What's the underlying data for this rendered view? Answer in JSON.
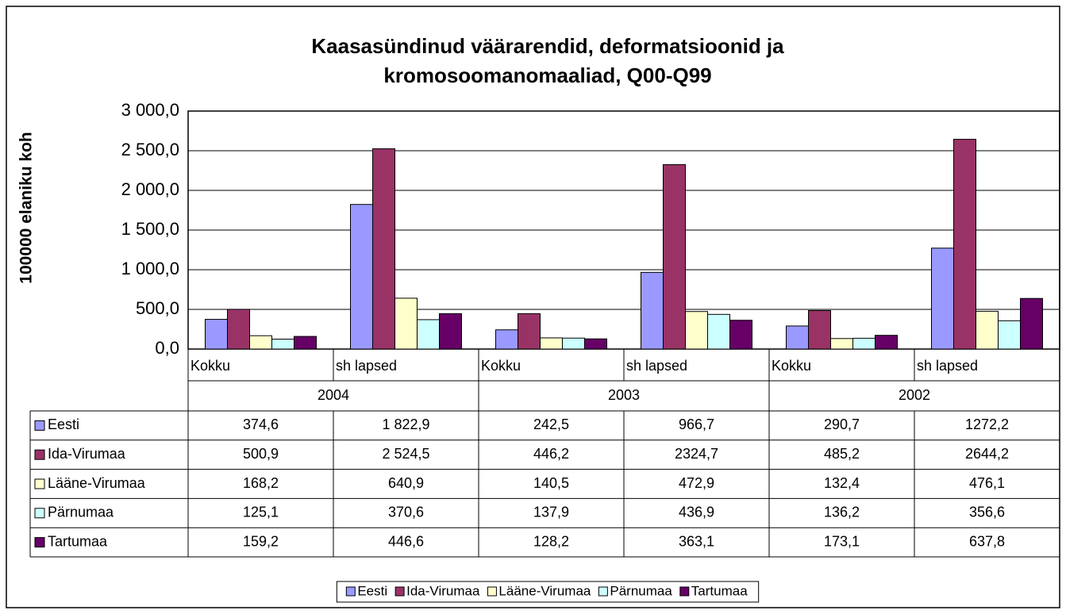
{
  "chart_data": {
    "type": "bar",
    "title": "Kaasasündinud väärarendid, deformatsioonid ja kromosoomanomaaliad, Q00-Q99",
    "title_lines": [
      "Kaasasündinud väärarendid, deformatsioonid ja",
      "kromosoomanomaaliad, Q00-Q99"
    ],
    "ylabel": "100000 elaniku koh",
    "categories": [
      "Kokku",
      "sh lapsed",
      "Kokku",
      "sh lapsed",
      "Kokku",
      "sh lapsed"
    ],
    "groups": [
      "2004",
      "2003",
      "2002"
    ],
    "series": [
      {
        "name": "Eesti",
        "color": "#9999ff",
        "values": [
          374.6,
          1822.9,
          242.5,
          966.7,
          290.7,
          1272.2
        ],
        "value_labels": [
          "374,6",
          "1 822,9",
          "242,5",
          "966,7",
          "290,7",
          "1272,2"
        ]
      },
      {
        "name": "Ida-Virumaa",
        "color": "#993366",
        "values": [
          500.9,
          2524.5,
          446.2,
          2324.7,
          485.2,
          2644.2
        ],
        "value_labels": [
          "500,9",
          "2 524,5",
          "446,2",
          "2324,7",
          "485,2",
          "2644,2"
        ]
      },
      {
        "name": "Lääne-Virumaa",
        "color": "#ffffcc",
        "values": [
          168.2,
          640.9,
          140.5,
          472.9,
          132.4,
          476.1
        ],
        "value_labels": [
          "168,2",
          "640,9",
          "140,5",
          "472,9",
          "132,4",
          "476,1"
        ]
      },
      {
        "name": "Pärnumaa",
        "color": "#ccffff",
        "values": [
          125.1,
          370.6,
          137.9,
          436.9,
          136.2,
          356.6
        ],
        "value_labels": [
          "125,1",
          "370,6",
          "137,9",
          "436,9",
          "136,2",
          "356,6"
        ]
      },
      {
        "name": "Tartumaa",
        "color": "#660066",
        "values": [
          159.2,
          446.6,
          128.2,
          363.1,
          173.1,
          637.8
        ],
        "value_labels": [
          "159,2",
          "446,6",
          "128,2",
          "363,1",
          "173,1",
          "637,8"
        ]
      }
    ],
    "ylim": [
      0,
      3000
    ],
    "yticks": [
      {
        "value": 0,
        "label": "0,0"
      },
      {
        "value": 500,
        "label": "500,0"
      },
      {
        "value": 1000,
        "label": "1 000,0"
      },
      {
        "value": 1500,
        "label": "1 500,0"
      },
      {
        "value": 2000,
        "label": "2 000,0"
      },
      {
        "value": 2500,
        "label": "2 500,0"
      },
      {
        "value": 3000,
        "label": "3 000,0"
      }
    ],
    "grid": true,
    "legend": "bottom"
  }
}
